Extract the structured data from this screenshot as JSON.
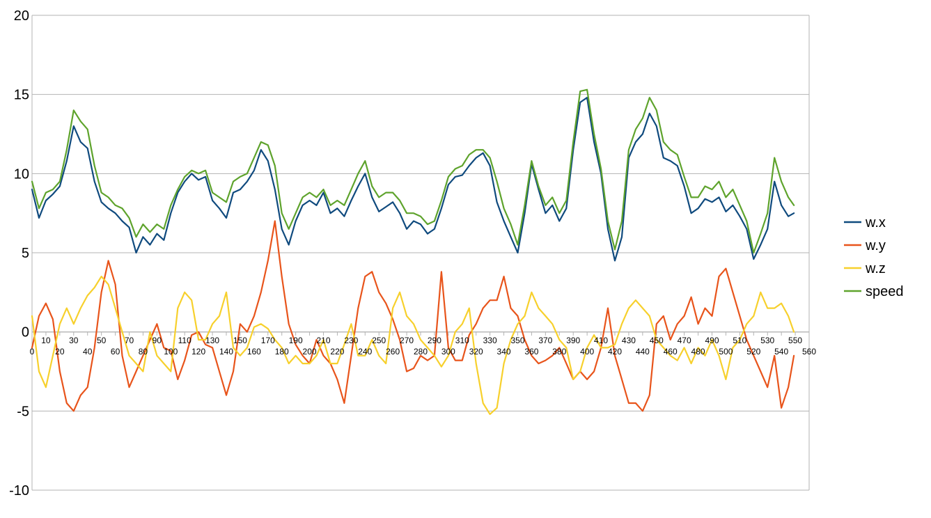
{
  "chart_data": {
    "type": "line",
    "title": "",
    "xlabel": "",
    "ylabel": "",
    "xlim": [
      0,
      560
    ],
    "ylim": [
      -10,
      20
    ],
    "x_ticks": [
      0,
      10,
      20,
      30,
      40,
      50,
      60,
      70,
      80,
      90,
      100,
      110,
      120,
      130,
      140,
      150,
      160,
      170,
      180,
      190,
      200,
      210,
      220,
      230,
      240,
      250,
      260,
      270,
      280,
      290,
      300,
      310,
      320,
      330,
      340,
      350,
      360,
      370,
      380,
      390,
      400,
      410,
      420,
      430,
      440,
      450,
      460,
      470,
      480,
      490,
      500,
      510,
      520,
      530,
      540,
      550,
      560
    ],
    "y_ticks": [
      20,
      15,
      10,
      5,
      0,
      -5,
      -10
    ],
    "grid": "horizontal",
    "legend_position": "right",
    "series": [
      {
        "name": "w.x",
        "color": "#0f4a7e",
        "x": [
          0,
          5,
          10,
          15,
          20,
          25,
          30,
          35,
          40,
          45,
          50,
          55,
          60,
          65,
          70,
          75,
          80,
          85,
          90,
          95,
          100,
          105,
          110,
          115,
          120,
          125,
          130,
          135,
          140,
          145,
          150,
          155,
          160,
          165,
          170,
          175,
          180,
          185,
          190,
          195,
          200,
          205,
          210,
          215,
          220,
          225,
          230,
          235,
          240,
          245,
          250,
          255,
          260,
          265,
          270,
          275,
          280,
          285,
          290,
          295,
          300,
          305,
          310,
          315,
          320,
          325,
          330,
          335,
          340,
          345,
          350,
          355,
          360,
          365,
          370,
          375,
          380,
          385,
          390,
          395,
          400,
          405,
          410,
          415,
          420,
          425,
          430,
          435,
          440,
          445,
          450,
          455,
          460,
          465,
          470,
          475,
          480,
          485,
          490,
          495,
          500,
          505,
          510,
          515,
          520,
          525,
          530,
          535,
          540,
          545,
          549
        ],
        "y": [
          9.0,
          7.2,
          8.3,
          8.7,
          9.2,
          10.8,
          13.0,
          12.0,
          11.6,
          9.5,
          8.2,
          7.8,
          7.5,
          7.0,
          6.6,
          5.0,
          6.0,
          5.5,
          6.2,
          5.8,
          7.5,
          8.8,
          9.5,
          10.0,
          9.6,
          9.8,
          8.3,
          7.8,
          7.2,
          8.8,
          9.0,
          9.5,
          10.2,
          11.5,
          10.8,
          9.0,
          6.5,
          5.5,
          7.0,
          8.0,
          8.3,
          8.0,
          8.8,
          7.5,
          7.8,
          7.3,
          8.3,
          9.2,
          10.0,
          8.5,
          7.6,
          7.9,
          8.2,
          7.5,
          6.5,
          7.0,
          6.8,
          6.2,
          6.5,
          7.8,
          9.3,
          9.8,
          9.9,
          10.5,
          11.0,
          11.3,
          10.5,
          8.2,
          7.0,
          6.0,
          5.0,
          7.5,
          10.6,
          9.0,
          7.5,
          8.0,
          7.0,
          7.8,
          11.5,
          14.5,
          14.8,
          12.0,
          10.0,
          6.5,
          4.5,
          6.0,
          11.0,
          12.0,
          12.5,
          13.8,
          13.0,
          11.0,
          10.8,
          10.5,
          9.2,
          7.5,
          7.8,
          8.4,
          8.2,
          8.5,
          7.6,
          8.0,
          7.3,
          6.5,
          4.6,
          5.5,
          6.5,
          9.5,
          8.0,
          7.3,
          7.5
        ]
      },
      {
        "name": "w.y",
        "color": "#e8541b",
        "x": [
          0,
          5,
          10,
          15,
          20,
          25,
          30,
          35,
          40,
          45,
          50,
          55,
          60,
          65,
          70,
          75,
          80,
          85,
          90,
          95,
          100,
          105,
          110,
          115,
          120,
          125,
          130,
          135,
          140,
          145,
          150,
          155,
          160,
          165,
          170,
          175,
          180,
          185,
          190,
          195,
          200,
          205,
          210,
          215,
          220,
          225,
          230,
          235,
          240,
          245,
          250,
          255,
          260,
          265,
          270,
          275,
          280,
          285,
          290,
          295,
          300,
          305,
          310,
          315,
          320,
          325,
          330,
          335,
          340,
          345,
          350,
          355,
          360,
          365,
          370,
          375,
          380,
          385,
          390,
          395,
          400,
          405,
          410,
          415,
          420,
          425,
          430,
          435,
          440,
          445,
          450,
          455,
          460,
          465,
          470,
          475,
          480,
          485,
          490,
          495,
          500,
          505,
          510,
          515,
          520,
          525,
          530,
          535,
          540,
          545,
          549
        ],
        "y": [
          -1.0,
          1.0,
          1.8,
          0.8,
          -2.5,
          -4.5,
          -5.0,
          -4.0,
          -3.5,
          -1.0,
          2.5,
          4.5,
          3.0,
          -1.5,
          -3.5,
          -2.5,
          -1.5,
          -0.5,
          0.5,
          -1.0,
          -1.2,
          -3.0,
          -1.8,
          -0.2,
          0.0,
          -0.8,
          -1.0,
          -2.5,
          -4.0,
          -2.5,
          0.5,
          0.0,
          1.0,
          2.5,
          4.5,
          7.0,
          3.5,
          0.5,
          -0.8,
          -1.5,
          -2.0,
          -0.5,
          -1.5,
          -2.0,
          -3.0,
          -4.5,
          -1.5,
          1.5,
          3.5,
          3.8,
          2.5,
          1.8,
          0.8,
          -0.5,
          -2.5,
          -2.3,
          -1.5,
          -1.8,
          -1.5,
          3.8,
          -1.0,
          -1.8,
          -1.8,
          -0.2,
          0.5,
          1.5,
          2.0,
          2.0,
          3.5,
          1.5,
          1.0,
          -0.5,
          -1.5,
          -2.0,
          -1.8,
          -1.5,
          -1.0,
          -2.0,
          -3.0,
          -2.5,
          -3.0,
          -2.5,
          -1.0,
          1.5,
          -1.5,
          -3.0,
          -4.5,
          -4.5,
          -5.0,
          -4.0,
          0.5,
          1.0,
          -0.5,
          0.5,
          1.0,
          2.2,
          0.5,
          1.5,
          1.0,
          3.5,
          4.0,
          2.5,
          1.0,
          -0.5,
          -1.5,
          -2.5,
          -3.5,
          -1.5,
          -4.8,
          -3.5,
          -1.5
        ]
      },
      {
        "name": "w.z",
        "color": "#f7d02c",
        "x": [
          0,
          5,
          10,
          15,
          20,
          25,
          30,
          35,
          40,
          45,
          50,
          55,
          60,
          65,
          70,
          75,
          80,
          85,
          90,
          95,
          100,
          105,
          110,
          115,
          120,
          125,
          130,
          135,
          140,
          145,
          150,
          155,
          160,
          165,
          170,
          175,
          180,
          185,
          190,
          195,
          200,
          205,
          210,
          215,
          220,
          225,
          230,
          235,
          240,
          245,
          250,
          255,
          260,
          265,
          270,
          275,
          280,
          285,
          290,
          295,
          300,
          305,
          310,
          315,
          320,
          325,
          330,
          335,
          340,
          345,
          350,
          355,
          360,
          365,
          370,
          375,
          380,
          385,
          390,
          395,
          400,
          405,
          410,
          415,
          420,
          425,
          430,
          435,
          440,
          445,
          450,
          455,
          460,
          465,
          470,
          475,
          480,
          485,
          490,
          495,
          500,
          505,
          510,
          515,
          520,
          525,
          530,
          535,
          540,
          545,
          549
        ],
        "y": [
          1.0,
          -2.5,
          -3.5,
          -1.5,
          0.5,
          1.5,
          0.5,
          1.5,
          2.3,
          2.8,
          3.5,
          3.0,
          1.5,
          0.0,
          -1.5,
          -2.0,
          -2.5,
          0.0,
          -1.5,
          -2.0,
          -2.5,
          1.5,
          2.5,
          2.0,
          -0.5,
          -0.5,
          0.5,
          1.0,
          2.5,
          -1.0,
          -1.5,
          -1.0,
          0.3,
          0.5,
          0.2,
          -0.5,
          -1.0,
          -2.0,
          -1.5,
          -2.0,
          -2.0,
          -1.5,
          -0.5,
          -2.0,
          -2.0,
          -0.8,
          0.5,
          -1.5,
          -1.5,
          -0.5,
          -1.5,
          -2.0,
          1.5,
          2.5,
          1.0,
          0.5,
          -0.5,
          -1.0,
          -1.5,
          -2.2,
          -1.5,
          0.0,
          0.5,
          1.5,
          -2.0,
          -4.5,
          -5.2,
          -4.8,
          -2.0,
          -0.5,
          0.5,
          1.0,
          2.5,
          1.5,
          1.0,
          0.5,
          -0.5,
          -1.0,
          -3.0,
          -2.5,
          -1.0,
          -0.2,
          -1.0,
          -1.0,
          -0.8,
          0.5,
          1.5,
          2.0,
          1.5,
          1.0,
          -0.5,
          -1.0,
          -1.5,
          -1.8,
          -1.0,
          -2.0,
          -1.0,
          -1.5,
          -0.5,
          -1.5,
          -3.0,
          -1.0,
          -0.5,
          0.5,
          1.0,
          2.5,
          1.5,
          1.5,
          1.8,
          1.0,
          0.0
        ]
      },
      {
        "name": "speed",
        "color": "#5ea32c",
        "x": [
          0,
          5,
          10,
          15,
          20,
          25,
          30,
          35,
          40,
          45,
          50,
          55,
          60,
          65,
          70,
          75,
          80,
          85,
          90,
          95,
          100,
          105,
          110,
          115,
          120,
          125,
          130,
          135,
          140,
          145,
          150,
          155,
          160,
          165,
          170,
          175,
          180,
          185,
          190,
          195,
          200,
          205,
          210,
          215,
          220,
          225,
          230,
          235,
          240,
          245,
          250,
          255,
          260,
          265,
          270,
          275,
          280,
          285,
          290,
          295,
          300,
          305,
          310,
          315,
          320,
          325,
          330,
          335,
          340,
          345,
          350,
          355,
          360,
          365,
          370,
          375,
          380,
          385,
          390,
          395,
          400,
          405,
          410,
          415,
          420,
          425,
          430,
          435,
          440,
          445,
          450,
          455,
          460,
          465,
          470,
          475,
          480,
          485,
          490,
          495,
          500,
          505,
          510,
          515,
          520,
          525,
          530,
          535,
          540,
          545,
          549
        ],
        "y": [
          9.5,
          7.8,
          8.8,
          9.0,
          9.5,
          11.5,
          14.0,
          13.3,
          12.8,
          10.5,
          8.8,
          8.5,
          8.0,
          7.8,
          7.2,
          6.0,
          6.8,
          6.3,
          6.8,
          6.5,
          8.0,
          9.0,
          9.8,
          10.2,
          10.0,
          10.2,
          8.8,
          8.5,
          8.2,
          9.5,
          9.8,
          10.0,
          11.0,
          12.0,
          11.8,
          10.5,
          7.5,
          6.5,
          7.5,
          8.5,
          8.8,
          8.5,
          9.0,
          8.0,
          8.3,
          8.0,
          9.0,
          10.0,
          10.8,
          9.2,
          8.5,
          8.8,
          8.8,
          8.3,
          7.5,
          7.5,
          7.3,
          6.8,
          7.0,
          8.3,
          9.8,
          10.3,
          10.5,
          11.2,
          11.5,
          11.5,
          11.0,
          9.5,
          7.8,
          6.8,
          5.5,
          8.0,
          10.8,
          9.2,
          8.0,
          8.5,
          7.5,
          8.3,
          12.0,
          15.2,
          15.3,
          12.5,
          10.3,
          7.0,
          5.2,
          7.0,
          11.5,
          12.8,
          13.5,
          14.8,
          14.0,
          12.0,
          11.5,
          11.2,
          9.8,
          8.5,
          8.5,
          9.2,
          9.0,
          9.5,
          8.5,
          9.0,
          8.0,
          7.0,
          5.0,
          6.2,
          7.5,
          11.0,
          9.5,
          8.5,
          8.0
        ]
      }
    ]
  }
}
